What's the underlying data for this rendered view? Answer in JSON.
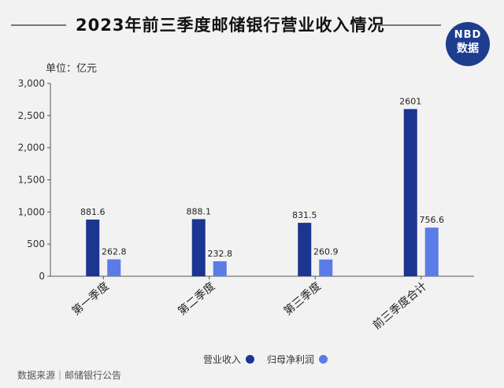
{
  "header": {
    "title": "2023年前三季度邮储银行营业收入情况"
  },
  "logo": {
    "line1": "NBD",
    "line2": "数据"
  },
  "unit_label": "单位：亿元",
  "source": "数据来源｜邮储银行公告",
  "colors": {
    "revenue": "#1c3591",
    "profit": "#5b7ce6",
    "axis": "#555555",
    "background": "#f2f2f2"
  },
  "chart_data": {
    "type": "bar",
    "categories": [
      "第一季度",
      "第二季度",
      "第三季度",
      "前三季度合计"
    ],
    "series": [
      {
        "name": "营业收入",
        "values": [
          881.6,
          888.1,
          831.5,
          2601
        ],
        "labels": [
          "881.6",
          "888.1",
          "831.5",
          "2601"
        ]
      },
      {
        "name": "归母净利润",
        "values": [
          262.8,
          232.8,
          260.9,
          756.6
        ],
        "labels": [
          "262.8",
          "232.8",
          "260.9",
          "756.6"
        ]
      }
    ],
    "ylim": [
      0,
      3000
    ],
    "yticks": [
      0,
      500,
      1000,
      1500,
      2000,
      2500,
      3000
    ],
    "ytick_labels": [
      "0",
      "500",
      "1,000",
      "1,500",
      "2,000",
      "2,500",
      "3,000"
    ],
    "unit": "亿元",
    "legend_position": "bottom"
  }
}
